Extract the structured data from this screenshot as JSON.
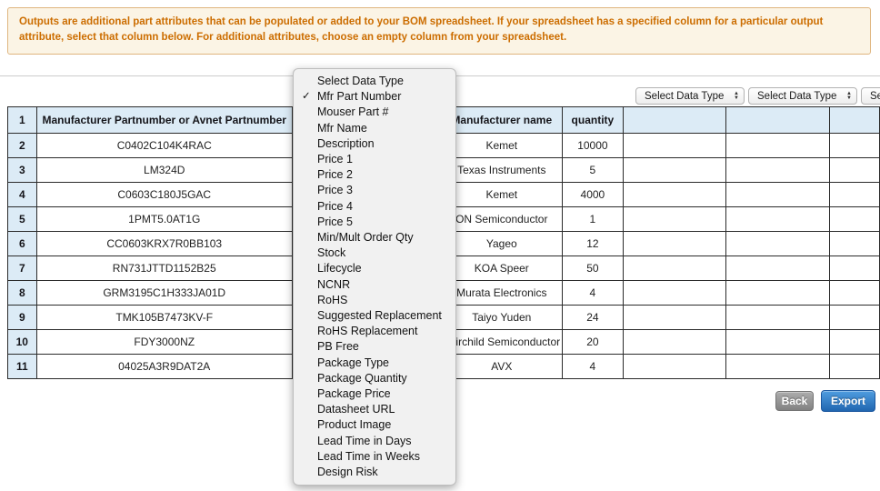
{
  "colors": {
    "banner_bg": "#fbf4e5",
    "banner_border": "#dfb57f",
    "banner_text": "#cc6d00",
    "header_bg": "#dcebf6",
    "export_blue": "#2166b0"
  },
  "banner": {
    "text": "Outputs are additional part attributes that can be populated or added to your BOM spreadsheet. If your spreadsheet has a specified column for a particular output attribute, select that column below. For additional attributes, choose an empty column from your spreadsheet."
  },
  "selects": {
    "placeholder": "Select Data Type"
  },
  "menu": {
    "check_glyph": "✓",
    "items": [
      {
        "label": "Select Data Type",
        "checked": false
      },
      {
        "label": "Mfr Part Number",
        "checked": true
      },
      {
        "label": "Mouser Part #",
        "checked": false
      },
      {
        "label": "Mfr Name",
        "checked": false
      },
      {
        "label": "Description",
        "checked": false
      },
      {
        "label": "Price 1",
        "checked": false
      },
      {
        "label": "Price 2",
        "checked": false
      },
      {
        "label": "Price 3",
        "checked": false
      },
      {
        "label": "Price 4",
        "checked": false
      },
      {
        "label": "Price 5",
        "checked": false
      },
      {
        "label": "Min/Mult Order Qty",
        "checked": false
      },
      {
        "label": "Stock",
        "checked": false
      },
      {
        "label": "Lifecycle",
        "checked": false
      },
      {
        "label": "NCNR",
        "checked": false
      },
      {
        "label": "RoHS",
        "checked": false
      },
      {
        "label": "Suggested Replacement",
        "checked": false
      },
      {
        "label": "RoHS Replacement",
        "checked": false
      },
      {
        "label": "PB Free",
        "checked": false
      },
      {
        "label": "Package Type",
        "checked": false
      },
      {
        "label": "Package Quantity",
        "checked": false
      },
      {
        "label": "Package Price",
        "checked": false
      },
      {
        "label": "Datasheet URL",
        "checked": false
      },
      {
        "label": "Product Image",
        "checked": false
      },
      {
        "label": "Lead Time in Days",
        "checked": false
      },
      {
        "label": "Lead Time in Weeks",
        "checked": false
      },
      {
        "label": "Design Risk",
        "checked": false
      }
    ]
  },
  "table": {
    "header_row_number": "1",
    "columns": {
      "partnumber": "Manufacturer Partnumber or Avnet Partnumber",
      "manufacturer": "Manufacturer name",
      "quantity": "quantity"
    },
    "rows": [
      {
        "num": "2",
        "partnumber": "C0402C104K4RAC",
        "manufacturer": "Kemet",
        "quantity": "10000"
      },
      {
        "num": "3",
        "partnumber": "LM324D",
        "manufacturer": "Texas Instruments",
        "quantity": "5"
      },
      {
        "num": "4",
        "partnumber": "C0603C180J5GAC",
        "manufacturer": "Kemet",
        "quantity": "4000"
      },
      {
        "num": "5",
        "partnumber": "1PMT5.0AT1G",
        "manufacturer": "ON Semiconductor",
        "quantity": "1"
      },
      {
        "num": "6",
        "partnumber": "CC0603KRX7R0BB103",
        "manufacturer": "Yageo",
        "quantity": "12"
      },
      {
        "num": "7",
        "partnumber": "RN731JTTD1152B25",
        "manufacturer": "KOA Speer",
        "quantity": "50"
      },
      {
        "num": "8",
        "partnumber": "GRM3195C1H333JA01D",
        "manufacturer": "Murata Electronics",
        "quantity": "4"
      },
      {
        "num": "9",
        "partnumber": "TMK105B7473KV-F",
        "manufacturer": "Taiyo Yuden",
        "quantity": "24"
      },
      {
        "num": "10",
        "partnumber": "FDY3000NZ",
        "manufacturer": "Fairchild Semiconductor",
        "quantity": "20"
      },
      {
        "num": "11",
        "partnumber": "04025A3R9DAT2A",
        "manufacturer": "AVX",
        "quantity": "4"
      }
    ]
  },
  "buttons": {
    "back": "Back",
    "export": "Export"
  }
}
